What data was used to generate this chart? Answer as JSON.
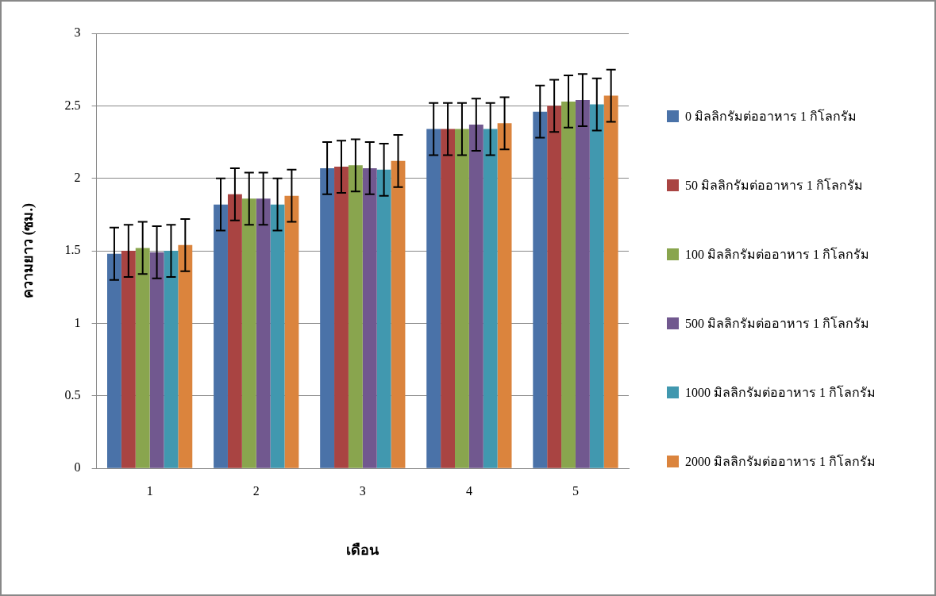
{
  "chart_data": {
    "type": "bar",
    "xlabel": "เดือน",
    "ylabel": "ความยาว (ซม.)",
    "categories": [
      "1",
      "2",
      "3",
      "4",
      "5"
    ],
    "series": [
      {
        "name": "0 มิลลิกรัมต่ออาหาร 1 กิโลกรัม",
        "color": "#4a72a8",
        "values": [
          1.48,
          1.82,
          2.07,
          2.34,
          2.46
        ],
        "errors": [
          0.18,
          0.18,
          0.18,
          0.18,
          0.18
        ]
      },
      {
        "name": "50 มิลลิกรัมต่ออาหาร 1 กิโลกรัม",
        "color": "#a94442",
        "values": [
          1.5,
          1.89,
          2.08,
          2.34,
          2.5
        ],
        "errors": [
          0.18,
          0.18,
          0.18,
          0.18,
          0.18
        ]
      },
      {
        "name": "100 มิลลิกรัมต่ออาหาร 1 กิโลกรัม",
        "color": "#89a54e",
        "values": [
          1.52,
          1.86,
          2.09,
          2.34,
          2.53
        ],
        "errors": [
          0.18,
          0.18,
          0.18,
          0.18,
          0.18
        ]
      },
      {
        "name": "500 มิลลิกรัมต่ออาหาร 1 กิโลกรัม",
        "color": "#71588f",
        "values": [
          1.49,
          1.86,
          2.07,
          2.37,
          2.54
        ],
        "errors": [
          0.18,
          0.18,
          0.18,
          0.18,
          0.18
        ]
      },
      {
        "name": "1000 มิลลิกรัมต่ออาหาร 1 กิโลกรัม",
        "color": "#4198af",
        "values": [
          1.5,
          1.82,
          2.06,
          2.34,
          2.51
        ],
        "errors": [
          0.18,
          0.18,
          0.18,
          0.18,
          0.18
        ]
      },
      {
        "name": "2000 มิลลิกรัมต่ออาหาร 1 กิโลกรัม",
        "color": "#db843d",
        "values": [
          1.54,
          1.88,
          2.12,
          2.38,
          2.57
        ],
        "errors": [
          0.18,
          0.18,
          0.18,
          0.18,
          0.18
        ]
      }
    ],
    "ylim": [
      0,
      3
    ],
    "yticks": [
      0,
      0.5,
      1,
      1.5,
      2,
      2.5,
      3
    ],
    "grid": "y",
    "legend": "right"
  }
}
